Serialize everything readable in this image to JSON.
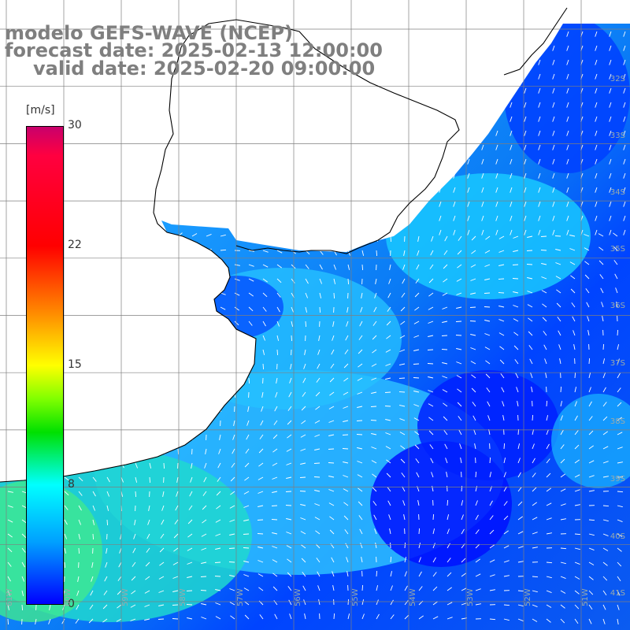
{
  "header": {
    "model": "modelo GEFS-WAVE (NCEP)",
    "forecast": "forecast date: 2025-02-13 12:00:00",
    "valid": "valid date: 2025-02-20 09:00:00"
  },
  "colorbar": {
    "unit": "[m/s]",
    "ticks": [
      "30",
      "22",
      "15",
      "8",
      "0"
    ],
    "min": 0,
    "max": 30,
    "colors": [
      "#0000ff",
      "#00a0ff",
      "#00ffff",
      "#00e000",
      "#80ff00",
      "#ffff00",
      "#ff8000",
      "#ff0000",
      "#ff0040",
      "#c8006c"
    ]
  },
  "lat_labels": [
    "32S",
    "33S",
    "34S",
    "35S",
    "36S",
    "37S",
    "38S",
    "39S",
    "40S",
    "41S"
  ],
  "lon_labels": [
    "61W",
    "60W",
    "59W",
    "58W",
    "57W",
    "56W",
    "55W",
    "54W",
    "53W",
    "52W",
    "51W"
  ],
  "map_style": {
    "land": "#ffffff",
    "grid": "#7f7f7f",
    "coastline": "#000000",
    "arrow": "#ffffff"
  }
}
